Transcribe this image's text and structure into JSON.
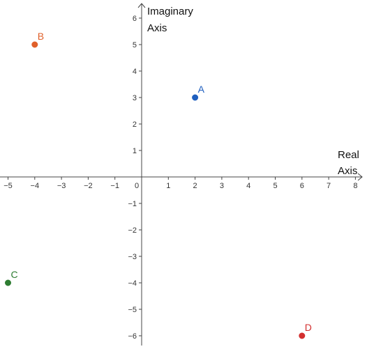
{
  "chart_data": {
    "type": "scatter",
    "title": "",
    "xlabel": [
      "Real",
      "Axis"
    ],
    "ylabel": [
      "Imaginary",
      "Axis"
    ],
    "xlim": [
      -5.3,
      8.3
    ],
    "ylim": [
      -6.4,
      6.6
    ],
    "grid": false,
    "x_ticks": [
      -5,
      -4,
      -3,
      -2,
      -1,
      0,
      1,
      2,
      3,
      4,
      5,
      6,
      7,
      8
    ],
    "y_ticks": [
      -6,
      -5,
      -4,
      -3,
      -2,
      -1,
      1,
      2,
      3,
      4,
      5,
      6
    ],
    "x_tick_labels": [
      "−5",
      "−4",
      "−3",
      "−2",
      "−1",
      "0",
      "1",
      "2",
      "3",
      "4",
      "5",
      "6",
      "7",
      "8"
    ],
    "y_tick_labels": [
      "−6",
      "−5",
      "−4",
      "−3",
      "−2",
      "−1",
      "1",
      "2",
      "3",
      "4",
      "5",
      "6"
    ],
    "points": [
      {
        "label": "A",
        "x": 2,
        "y": 3,
        "color": "#1f5fbf"
      },
      {
        "label": "B",
        "x": -4,
        "y": 5,
        "color": "#e0602a"
      },
      {
        "label": "C",
        "x": -5,
        "y": -4,
        "color": "#2e7d32"
      },
      {
        "label": "D",
        "x": 6,
        "y": -6,
        "color": "#d32f2f"
      }
    ]
  }
}
